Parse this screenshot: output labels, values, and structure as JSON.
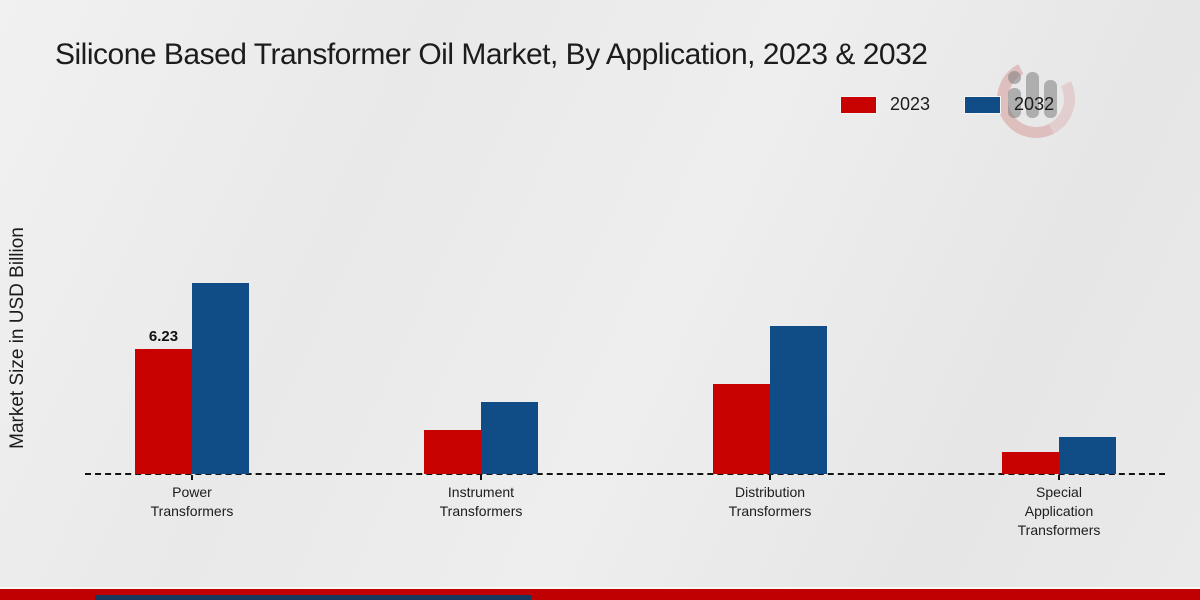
{
  "title": "Silicone Based Transformer Oil Market, By Application, 2023 & 2032",
  "ylabel": "Market Size in USD Billion",
  "colors": {
    "series_2023": "#c80101",
    "series_2032": "#104d87",
    "footer_band": "#c00000",
    "footer_accent": "#17375e",
    "text": "#1c1c1c",
    "background": "#eaeaea"
  },
  "chart_data": {
    "type": "bar",
    "title": "Silicone Based Transformer Oil Market, By Application, 2023 & 2032",
    "xlabel": "",
    "ylabel": "Market Size in USD Billion",
    "categories": [
      "Power\nTransformers",
      "Instrument\nTransformers",
      "Distribution\nTransformers",
      "Special\nApplication\nTransformers"
    ],
    "series": [
      {
        "name": "2023",
        "color": "#c80101",
        "values": [
          6.23,
          2.21,
          4.5,
          1.11
        ]
      },
      {
        "name": "2032",
        "color": "#104d87",
        "values": [
          9.57,
          3.58,
          7.41,
          1.84
        ]
      }
    ],
    "ylim": [
      0,
      12
    ],
    "grid": false,
    "axis_style": "dashed-baseline-only",
    "legend_position": "top-right",
    "annotations": [
      {
        "series_index": 0,
        "category_index": 0,
        "text": "6.23"
      }
    ]
  }
}
